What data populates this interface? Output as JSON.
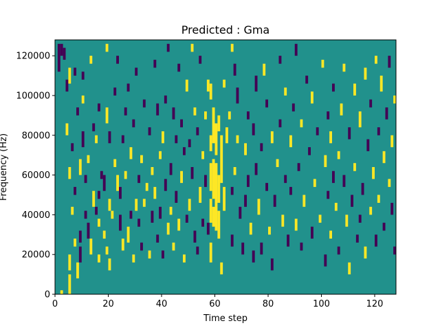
{
  "chart_data": {
    "type": "heatmap",
    "title": "Predicted : Gma",
    "xlabel": "Time step",
    "ylabel": "Frequency (Hz)",
    "xlim": [
      0,
      128
    ],
    "ylim": [
      0,
      128000
    ],
    "xticks": [
      0,
      20,
      40,
      60,
      80,
      100,
      120
    ],
    "yticks": [
      0,
      20000,
      40000,
      60000,
      80000,
      100000,
      120000
    ],
    "xtick_labels": [
      "0",
      "20",
      "40",
      "60",
      "80",
      "100",
      "120"
    ],
    "ytick_labels": [
      "0",
      "20000",
      "40000",
      "60000",
      "80000",
      "100000",
      "120000"
    ],
    "grid": false,
    "legend": "none",
    "n_time_steps": 128,
    "n_freq_bins": 64,
    "freq_bin_hz": 2000,
    "colors": {
      "background": "#21918c",
      "low": "#440154",
      "high": "#fde725"
    },
    "cells_note_values": "each cell: [time_step, freq_bin_start, freq_bin_end, value] value 1 = high, -1 = low",
    "cells": [
      [
        1,
        56,
        63,
        -1
      ],
      [
        2,
        60,
        63,
        -1
      ],
      [
        2,
        0,
        1,
        1
      ],
      [
        3,
        59,
        62,
        -1
      ],
      [
        4,
        51,
        54,
        -1
      ],
      [
        4,
        40,
        43,
        1
      ],
      [
        5,
        0,
        5,
        1
      ],
      [
        5,
        6,
        10,
        1
      ],
      [
        5,
        53,
        57,
        1
      ],
      [
        5,
        29,
        32,
        1
      ],
      [
        6,
        36,
        38,
        -1
      ],
      [
        6,
        20,
        22,
        1
      ],
      [
        7,
        55,
        57,
        -1
      ],
      [
        7,
        25,
        27,
        -1
      ],
      [
        7,
        12,
        14,
        1
      ],
      [
        8,
        45,
        47,
        -1
      ],
      [
        8,
        4,
        8,
        1
      ],
      [
        9,
        30,
        34,
        1
      ],
      [
        9,
        8,
        12,
        -1
      ],
      [
        9,
        13,
        16,
        -1
      ],
      [
        10,
        37,
        41,
        -1
      ],
      [
        10,
        54,
        56,
        -1
      ],
      [
        10,
        48,
        50,
        1
      ],
      [
        11,
        28,
        30,
        -1
      ],
      [
        11,
        19,
        21,
        -1
      ],
      [
        12,
        14,
        18,
        -1
      ],
      [
        12,
        33,
        35,
        1
      ],
      [
        13,
        10,
        14,
        1
      ],
      [
        13,
        58,
        60,
        1
      ],
      [
        14,
        41,
        43,
        -1
      ],
      [
        14,
        22,
        26,
        1
      ],
      [
        15,
        20,
        22,
        -1
      ],
      [
        15,
        38,
        40,
        1
      ],
      [
        16,
        8,
        10,
        1
      ],
      [
        16,
        17,
        19,
        1
      ],
      [
        16,
        24,
        26,
        -1
      ],
      [
        16,
        46,
        48,
        -1
      ],
      [
        17,
        29,
        31,
        -1
      ],
      [
        18,
        26,
        30,
        -1
      ],
      [
        18,
        14,
        16,
        1
      ],
      [
        19,
        10,
        12,
        1
      ],
      [
        19,
        43,
        47,
        1
      ],
      [
        19,
        61,
        63,
        1
      ],
      [
        20,
        21,
        24,
        1
      ],
      [
        20,
        6,
        9,
        1
      ],
      [
        20,
        38,
        41,
        -1
      ],
      [
        21,
        19,
        21,
        1
      ],
      [
        22,
        50,
        52,
        -1
      ],
      [
        22,
        32,
        34,
        1
      ],
      [
        23,
        58,
        60,
        -1
      ],
      [
        23,
        26,
        30,
        1
      ],
      [
        24,
        24,
        27,
        -1
      ],
      [
        24,
        16,
        20,
        -1
      ],
      [
        25,
        38,
        40,
        -1
      ],
      [
        25,
        11,
        14,
        1
      ],
      [
        26,
        45,
        47,
        -1
      ],
      [
        26,
        29,
        31,
        1
      ],
      [
        27,
        51,
        53,
        -1
      ],
      [
        27,
        13,
        17,
        1
      ],
      [
        28,
        19,
        21,
        -1
      ],
      [
        28,
        34,
        37,
        1
      ],
      [
        29,
        42,
        44,
        -1
      ],
      [
        29,
        8,
        10,
        1
      ],
      [
        30,
        21,
        24,
        1
      ],
      [
        30,
        55,
        57,
        -1
      ],
      [
        31,
        28,
        30,
        -1
      ],
      [
        31,
        17,
        19,
        -1
      ],
      [
        32,
        33,
        35,
        1
      ],
      [
        32,
        11,
        13,
        -1
      ],
      [
        33,
        47,
        49,
        -1
      ],
      [
        33,
        22,
        24,
        1
      ],
      [
        34,
        26,
        28,
        1
      ],
      [
        35,
        40,
        42,
        -1
      ],
      [
        35,
        9,
        11,
        1
      ],
      [
        36,
        18,
        21,
        -1
      ],
      [
        36,
        30,
        32,
        1
      ],
      [
        37,
        57,
        59,
        -1
      ],
      [
        37,
        24,
        27,
        1
      ],
      [
        38,
        13,
        15,
        -1
      ],
      [
        38,
        45,
        48,
        -1
      ],
      [
        39,
        34,
        36,
        1
      ],
      [
        39,
        19,
        22,
        -1
      ],
      [
        40,
        9,
        11,
        -1
      ],
      [
        40,
        38,
        41,
        1
      ],
      [
        41,
        26,
        29,
        -1
      ],
      [
        41,
        48,
        50,
        -1
      ],
      [
        42,
        61,
        63,
        -1
      ],
      [
        42,
        15,
        18,
        1
      ],
      [
        43,
        30,
        33,
        -1
      ],
      [
        43,
        20,
        22,
        1
      ],
      [
        44,
        44,
        47,
        -1
      ],
      [
        44,
        11,
        13,
        1
      ],
      [
        45,
        38,
        40,
        -1
      ],
      [
        45,
        23,
        26,
        -1
      ],
      [
        46,
        56,
        58,
        -1
      ],
      [
        46,
        16,
        19,
        1
      ],
      [
        47,
        28,
        31,
        1
      ],
      [
        47,
        42,
        44,
        -1
      ],
      [
        48,
        8,
        10,
        1
      ],
      [
        48,
        35,
        37,
        -1
      ],
      [
        49,
        18,
        20,
        -1
      ],
      [
        49,
        51,
        54,
        1
      ],
      [
        50,
        21,
        24,
        1
      ],
      [
        50,
        37,
        39,
        -1
      ],
      [
        51,
        29,
        32,
        -1
      ],
      [
        51,
        61,
        63,
        1
      ],
      [
        52,
        13,
        16,
        -1
      ],
      [
        52,
        45,
        47,
        1
      ],
      [
        53,
        10,
        12,
        -1
      ],
      [
        53,
        40,
        42,
        -1
      ],
      [
        54,
        23,
        27,
        1
      ],
      [
        54,
        58,
        60,
        -1
      ],
      [
        55,
        34,
        36,
        1
      ],
      [
        55,
        17,
        19,
        -1
      ],
      [
        56,
        27,
        30,
        -1
      ],
      [
        56,
        44,
        46,
        1
      ],
      [
        57,
        51,
        54,
        1
      ],
      [
        57,
        15,
        18,
        -1
      ],
      [
        58,
        8,
        13,
        1
      ],
      [
        58,
        18,
        24,
        1
      ],
      [
        58,
        26,
        33,
        1
      ],
      [
        58,
        36,
        40,
        1
      ],
      [
        58,
        49,
        53,
        1
      ],
      [
        59,
        17,
        22,
        1
      ],
      [
        59,
        24,
        34,
        1
      ],
      [
        59,
        38,
        47,
        1
      ],
      [
        60,
        16,
        33,
        1
      ],
      [
        60,
        35,
        43,
        1
      ],
      [
        61,
        14,
        21,
        1
      ],
      [
        61,
        23,
        30,
        1
      ],
      [
        61,
        41,
        45,
        1
      ],
      [
        62,
        5,
        8,
        1
      ],
      [
        62,
        28,
        40,
        1
      ],
      [
        63,
        21,
        27,
        1
      ],
      [
        63,
        52,
        54,
        1
      ],
      [
        64,
        38,
        42,
        1
      ],
      [
        65,
        44,
        46,
        1
      ],
      [
        66,
        12,
        15,
        -1
      ],
      [
        66,
        25,
        27,
        -1
      ],
      [
        66,
        61,
        63,
        1
      ],
      [
        67,
        30,
        32,
        1
      ],
      [
        67,
        55,
        58,
        -1
      ],
      [
        68,
        38,
        40,
        1
      ],
      [
        68,
        48,
        52,
        -1
      ],
      [
        69,
        19,
        22,
        -1
      ],
      [
        70,
        10,
        13,
        -1
      ],
      [
        71,
        35,
        38,
        1
      ],
      [
        71,
        22,
        25,
        -1
      ],
      [
        72,
        44,
        46,
        -1
      ],
      [
        72,
        27,
        30,
        -1
      ],
      [
        73,
        15,
        18,
        1
      ],
      [
        74,
        8,
        11,
        -1
      ],
      [
        74,
        40,
        43,
        -1
      ],
      [
        75,
        30,
        33,
        -1
      ],
      [
        75,
        51,
        55,
        -1
      ],
      [
        76,
        20,
        24,
        1
      ],
      [
        77,
        36,
        38,
        -1
      ],
      [
        77,
        10,
        13,
        -1
      ],
      [
        78,
        55,
        58,
        1
      ],
      [
        79,
        47,
        49,
        -1
      ],
      [
        79,
        26,
        28,
        -1
      ],
      [
        80,
        15,
        17,
        1
      ],
      [
        81,
        38,
        41,
        1
      ],
      [
        81,
        6,
        9,
        -1
      ],
      [
        82,
        22,
        25,
        -1
      ],
      [
        83,
        32,
        34,
        1
      ],
      [
        84,
        58,
        60,
        -1
      ],
      [
        84,
        42,
        44,
        -1
      ],
      [
        85,
        17,
        20,
        1
      ],
      [
        86,
        28,
        30,
        -1
      ],
      [
        86,
        50,
        52,
        1
      ],
      [
        87,
        12,
        15,
        -1
      ],
      [
        88,
        37,
        40,
        1
      ],
      [
        88,
        25,
        27,
        -1
      ],
      [
        89,
        46,
        48,
        -1
      ],
      [
        90,
        16,
        19,
        1
      ],
      [
        90,
        60,
        63,
        -1
      ],
      [
        91,
        31,
        33,
        -1
      ],
      [
        92,
        42,
        44,
        1
      ],
      [
        92,
        11,
        13,
        -1
      ],
      [
        93,
        22,
        25,
        1
      ],
      [
        94,
        53,
        55,
        -1
      ],
      [
        95,
        35,
        37,
        -1
      ],
      [
        96,
        14,
        17,
        -1
      ],
      [
        96,
        48,
        51,
        1
      ],
      [
        97,
        27,
        29,
        1
      ],
      [
        98,
        40,
        42,
        -1
      ],
      [
        99,
        18,
        20,
        1
      ],
      [
        100,
        57,
        59,
        1
      ],
      [
        101,
        32,
        35,
        1
      ],
      [
        101,
        7,
        10,
        -1
      ],
      [
        102,
        44,
        46,
        -1
      ],
      [
        102,
        24,
        26,
        -1
      ],
      [
        103,
        38,
        41,
        1
      ],
      [
        103,
        14,
        16,
        1
      ],
      [
        104,
        51,
        53,
        -1
      ],
      [
        104,
        28,
        31,
        -1
      ],
      [
        105,
        21,
        23,
        1
      ],
      [
        106,
        34,
        36,
        1
      ],
      [
        106,
        10,
        12,
        -1
      ],
      [
        107,
        45,
        48,
        1
      ],
      [
        108,
        27,
        30,
        -1
      ],
      [
        108,
        56,
        58,
        1
      ],
      [
        109,
        17,
        20,
        1
      ],
      [
        110,
        39,
        42,
        -1
      ],
      [
        110,
        5,
        8,
        1
      ],
      [
        111,
        22,
        25,
        -1
      ],
      [
        112,
        50,
        53,
        1
      ],
      [
        112,
        31,
        33,
        1
      ],
      [
        113,
        13,
        15,
        -1
      ],
      [
        114,
        42,
        46,
        1
      ],
      [
        114,
        18,
        20,
        -1
      ],
      [
        115,
        25,
        28,
        -1
      ],
      [
        116,
        54,
        57,
        1
      ],
      [
        116,
        9,
        12,
        1
      ],
      [
        117,
        36,
        39,
        -1
      ],
      [
        118,
        20,
        22,
        1
      ],
      [
        118,
        47,
        49,
        -1
      ],
      [
        119,
        29,
        32,
        1
      ],
      [
        120,
        58,
        60,
        1
      ],
      [
        120,
        12,
        15,
        -1
      ],
      [
        121,
        40,
        42,
        -1
      ],
      [
        121,
        23,
        25,
        1
      ],
      [
        122,
        51,
        55,
        1
      ],
      [
        123,
        16,
        18,
        -1
      ],
      [
        123,
        33,
        36,
        1
      ],
      [
        124,
        44,
        47,
        -1
      ],
      [
        125,
        27,
        29,
        1
      ],
      [
        125,
        57,
        60,
        -1
      ],
      [
        126,
        20,
        23,
        -1
      ],
      [
        126,
        37,
        40,
        1
      ],
      [
        127,
        10,
        12,
        -1
      ],
      [
        127,
        48,
        50,
        1
      ]
    ]
  }
}
